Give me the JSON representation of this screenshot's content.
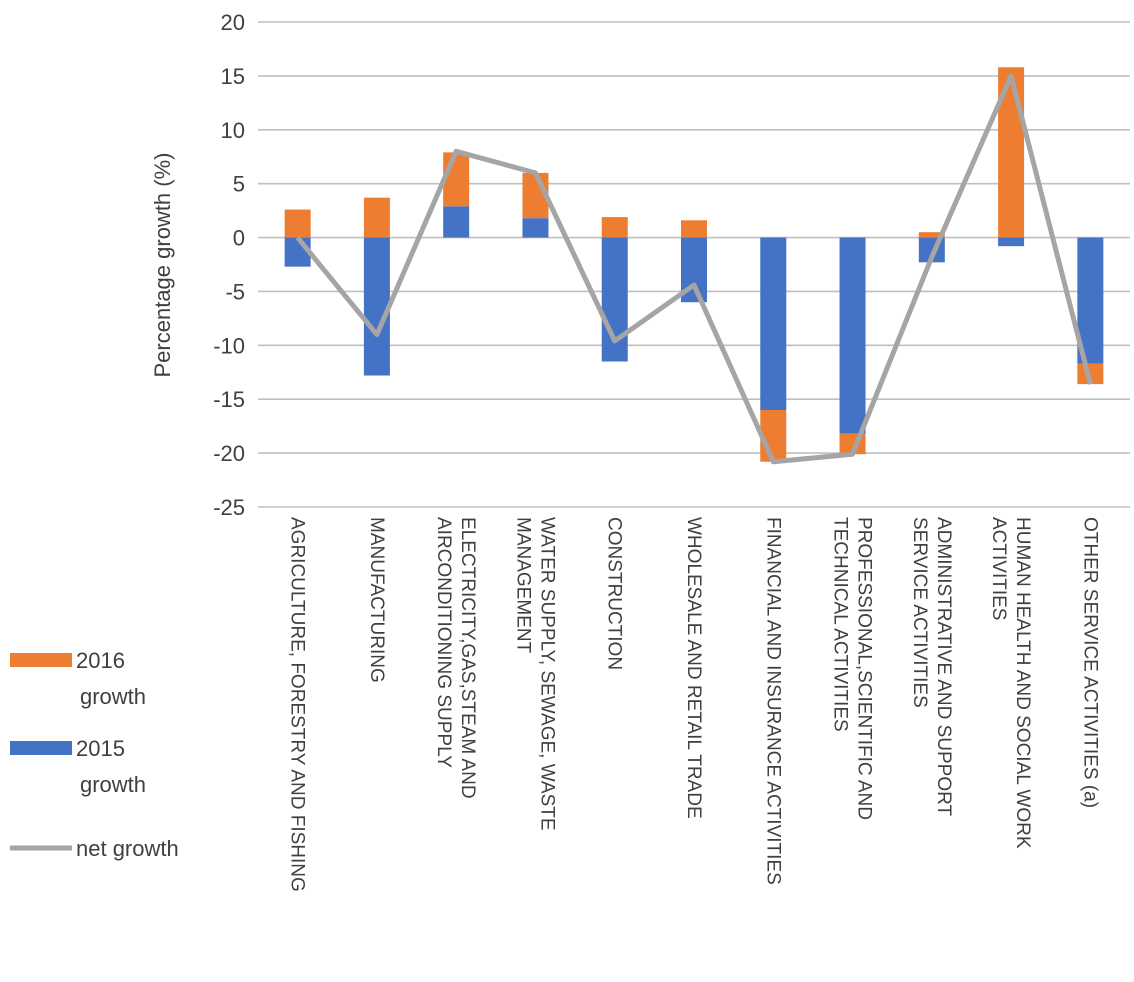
{
  "chart_data": {
    "type": "bar",
    "stacked": true,
    "ylabel": "Percentage growth (%)",
    "xlabel": "",
    "ylim": [
      -25,
      20
    ],
    "yticks": [
      20,
      15,
      10,
      5,
      0,
      -5,
      -10,
      -15,
      -20,
      -25
    ],
    "grid": true,
    "legend_position": "left",
    "categories": [
      [
        "AGRICULTURE, FORESTRY AND FISHING"
      ],
      [
        "MANUFACTURING"
      ],
      [
        "ELECTRICITY,GAS,STEAM AND",
        "AIRCONDITIONING SUPPLY"
      ],
      [
        "WATER SUPPLY, SEWAGE, WASTE",
        "MANAGEMENT"
      ],
      [
        "CONSTRUCTION"
      ],
      [
        "WHOLESALE AND RETAIL TRADE"
      ],
      [
        "FINANCIAL AND INSURANCE ACTIVITIES"
      ],
      [
        "PROFESSIONAL,SCIENTIFIC AND",
        "TECHNICAL ACTIVITIES"
      ],
      [
        "ADMINISTRATIVE AND SUPPORT",
        "SERVICE ACTIVITIES"
      ],
      [
        "HUMAN HEALTH AND SOCIAL WORK",
        "ACTIVITIES"
      ],
      [
        "OTHER SERVICE ACTIVITIES (a)"
      ]
    ],
    "series": [
      {
        "name": "2015 growth",
        "color": "#4472C4",
        "kind": "bar",
        "values": [
          -2.7,
          -12.8,
          2.9,
          1.8,
          -11.5,
          -6.0,
          -16.0,
          -18.2,
          -2.3,
          -0.8,
          -11.7
        ]
      },
      {
        "name": "2016 growth",
        "color": "#ED7D31",
        "kind": "bar",
        "values": [
          2.6,
          3.7,
          5.0,
          4.2,
          1.9,
          1.6,
          -4.8,
          -1.9,
          0.5,
          15.8,
          -1.9
        ]
      },
      {
        "name": "net growth",
        "color": "#A5A5A5",
        "kind": "line",
        "values": [
          0.0,
          -9.0,
          8.0,
          6.0,
          -9.6,
          -4.4,
          -20.8,
          -20.1,
          -1.8,
          15.0,
          -13.6
        ]
      }
    ],
    "legend_order": [
      "2016 growth",
      "2015 growth",
      "net growth"
    ],
    "legend_lines": {
      "2016 growth": [
        "2016",
        "growth"
      ],
      "2015 growth": [
        "2015",
        "growth"
      ],
      "net growth": [
        "net growth"
      ]
    }
  }
}
